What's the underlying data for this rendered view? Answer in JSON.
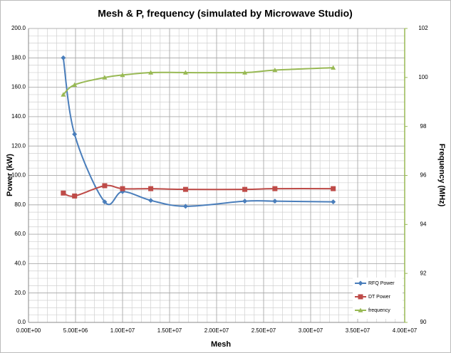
{
  "chart_data": {
    "type": "line",
    "title": "Mesh & P, frequency (simulated by Microwave Studio)",
    "x_label": "Mesh",
    "y_label": "Power (kW)",
    "y2_label": "Frequency (MHz)",
    "x": [
      3700000,
      4900000,
      8100000,
      10000000,
      13000000,
      16700000,
      23000000,
      26200000,
      32400000
    ],
    "series": [
      {
        "name": "RFQ Power",
        "color": "#4a7ebb",
        "marker": "diamond",
        "values": [
          180,
          128,
          82,
          89,
          83,
          79,
          82.5,
          82.5,
          82
        ]
      },
      {
        "name": "DT Power",
        "color": "#be4b48",
        "marker": "square",
        "values": [
          88,
          86,
          93,
          91,
          91,
          90.5,
          90.5,
          91,
          91
        ]
      },
      {
        "name": "frequency",
        "color": "#98b954",
        "marker": "triangle",
        "axis": "y2",
        "values": [
          99.3,
          99.7,
          100.0,
          100.1,
          100.2,
          100.2,
          100.2,
          100.3,
          100.4
        ]
      }
    ],
    "xlim": [
      0,
      40000000
    ],
    "xticks": [
      {
        "value": 0,
        "label": "0.00E+00"
      },
      {
        "value": 5000000,
        "label": "5.00E+06"
      },
      {
        "value": 10000000,
        "label": "1.00E+07"
      },
      {
        "value": 15000000,
        "label": "1.50E+07"
      },
      {
        "value": 20000000,
        "label": "2.00E+07"
      },
      {
        "value": 25000000,
        "label": "2.50E+07"
      },
      {
        "value": 30000000,
        "label": "3.00E+07"
      },
      {
        "value": 35000000,
        "label": "3.50E+07"
      },
      {
        "value": 40000000,
        "label": "4.00E+07"
      }
    ],
    "ylim": [
      0,
      200
    ],
    "yticks": [
      {
        "value": 0,
        "label": "0.0"
      },
      {
        "value": 20,
        "label": "20.0"
      },
      {
        "value": 40,
        "label": "40.0"
      },
      {
        "value": 60,
        "label": "60.0"
      },
      {
        "value": 80,
        "label": "80.0"
      },
      {
        "value": 100,
        "label": "100.0"
      },
      {
        "value": 120,
        "label": "120.0"
      },
      {
        "value": 140,
        "label": "140.0"
      },
      {
        "value": 160,
        "label": "160.0"
      },
      {
        "value": 180,
        "label": "180.0"
      },
      {
        "value": 200,
        "label": "200.0"
      }
    ],
    "y2lim": [
      90,
      102
    ],
    "y2ticks": [
      90,
      92,
      94,
      96,
      98,
      100,
      102
    ],
    "grid": true,
    "legend": "lower right"
  }
}
